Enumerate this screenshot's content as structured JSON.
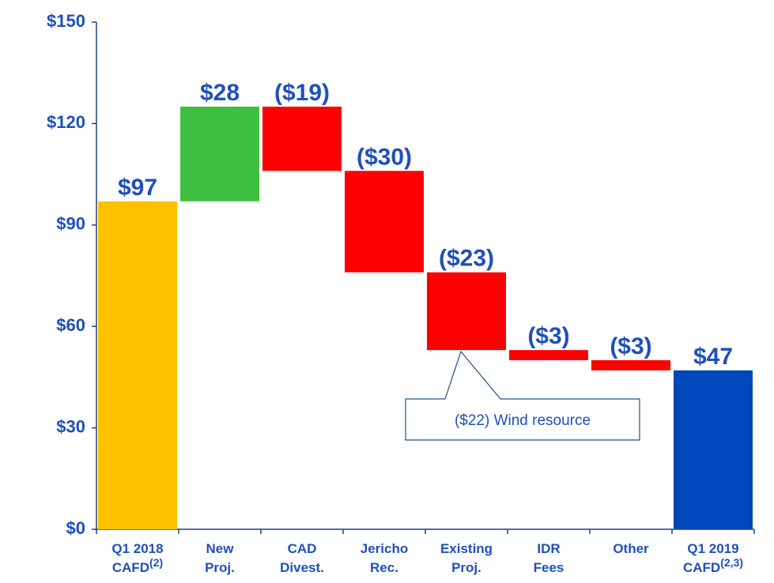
{
  "chart_data": {
    "type": "waterfall",
    "categories": [
      [
        "Q1 2018",
        "CAFD"
      ],
      [
        "New",
        "Proj."
      ],
      [
        "CAD",
        "Divest."
      ],
      [
        "Jericho",
        "Rec."
      ],
      [
        "Existing",
        "Proj."
      ],
      [
        "IDR",
        "Fees"
      ],
      [
        "Other"
      ],
      [
        "Q1 2019",
        "CAFD"
      ]
    ],
    "category_notes": [
      "(2)",
      null,
      null,
      null,
      null,
      null,
      null,
      "(2,3)"
    ],
    "values": [
      97,
      28,
      -19,
      -30,
      -23,
      -3,
      -3,
      47
    ],
    "value_labels": [
      "$97",
      "$28",
      "($19)",
      "($30)",
      "($23)",
      "($3)",
      "($3)",
      "$47"
    ],
    "totals": [
      true,
      false,
      false,
      false,
      false,
      false,
      false,
      true
    ],
    "colors": [
      "#ffc000",
      "#3fbf3f",
      "#ff0000",
      "#ff0000",
      "#ff0000",
      "#ff0000",
      "#ff0000",
      "#0047bb"
    ],
    "ylim": [
      0,
      150
    ],
    "yticks": [
      {
        "value": 0,
        "label": "$0"
      },
      {
        "value": 30,
        "label": "$30"
      },
      {
        "value": 60,
        "label": "$60"
      },
      {
        "value": 90,
        "label": "$90"
      },
      {
        "value": 120,
        "label": "$120"
      },
      {
        "value": 150,
        "label": "$150"
      }
    ],
    "annotation": "($22) Wind resource"
  }
}
